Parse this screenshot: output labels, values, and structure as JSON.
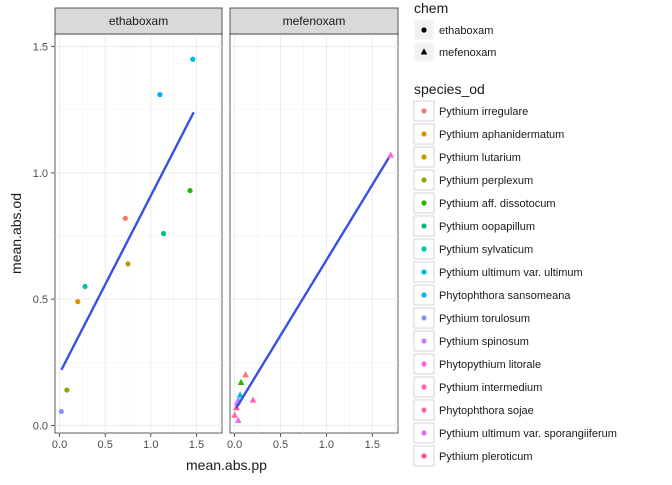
{
  "chart_data": {
    "type": "scatter",
    "xlabel": "mean.abs.pp",
    "ylabel": "mean.abs.od",
    "xlim": [
      -0.05,
      1.78
    ],
    "ylim": [
      -0.03,
      1.55
    ],
    "grid": true,
    "x_ticks": [
      0.0,
      0.5,
      1.0,
      1.5
    ],
    "x_tick_labels": [
      "0.0",
      "0.5",
      "1.0",
      "1.5"
    ],
    "y_ticks": [
      0.0,
      0.5,
      1.0,
      1.5
    ],
    "y_tick_labels": [
      "0.0",
      "0.5",
      "1.0",
      "1.5"
    ],
    "panels": [
      {
        "title": "ethaboxam",
        "shape": "circle",
        "fit": {
          "x": [
            0.02,
            1.47
          ],
          "y": [
            0.22,
            1.24
          ],
          "color": "#3A4FE8"
        },
        "points": [
          {
            "species": "Pythium irregulare",
            "x": 0.72,
            "y": 0.82
          },
          {
            "species": "Pythium aphanidermatum",
            "x": 0.2,
            "y": 0.49
          },
          {
            "species": "Pythium lutarium",
            "x": 0.75,
            "y": 0.64
          },
          {
            "species": "Pythium perplexum",
            "x": 0.08,
            "y": 0.14
          },
          {
            "species": "Pythium aff. dissotocum",
            "x": 1.43,
            "y": 0.93
          },
          {
            "species": "Pythium oopapillum",
            "x": 1.14,
            "y": 0.76
          },
          {
            "species": "Pythium sylvaticum",
            "x": 0.28,
            "y": 0.55
          },
          {
            "species": "Pythium ultimum var. ultimum",
            "x": 1.46,
            "y": 1.45
          },
          {
            "species": "Phytophthora sansomeana",
            "x": 1.1,
            "y": 1.31
          },
          {
            "species": "Pythium torulosum",
            "x": 0.02,
            "y": 0.055
          }
        ]
      },
      {
        "title": "mefenoxam",
        "shape": "triangle",
        "fit": {
          "x": [
            0.02,
            1.68
          ],
          "y": [
            0.07,
            1.06
          ],
          "color": "#3A4FE8"
        },
        "points": [
          {
            "species": "Pythium irregulare",
            "x": 0.12,
            "y": 0.2
          },
          {
            "species": "Pythium aff. dissotocum",
            "x": 0.07,
            "y": 0.17
          },
          {
            "species": "Pythium ultimum var. ultimum",
            "x": 0.06,
            "y": 0.12
          },
          {
            "species": "Pythium torulosum",
            "x": 0.04,
            "y": 0.1
          },
          {
            "species": "Pythium spinosum",
            "x": 0.03,
            "y": 0.09
          },
          {
            "species": "Phytopythium litorale",
            "x": 1.7,
            "y": 1.07
          },
          {
            "species": "Pythium intermedium",
            "x": 0.2,
            "y": 0.1
          },
          {
            "species": "Phytophthora sojae",
            "x": 0.0,
            "y": 0.04
          },
          {
            "species": "Pythium ultimum var. sporangiiferum",
            "x": 0.04,
            "y": 0.02
          },
          {
            "species": "Pythium pleroticum",
            "x": 0.02,
            "y": 0.07
          }
        ]
      }
    ],
    "legend_placement": "right",
    "legend_chem": {
      "title": "chem",
      "items": [
        {
          "label": "ethaboxam",
          "shape": "circle"
        },
        {
          "label": "mefenoxam",
          "shape": "triangle"
        }
      ]
    },
    "legend_species": {
      "title": "species_od",
      "items": [
        {
          "label": "Pythium irregulare",
          "color": "#F8766D"
        },
        {
          "label": "Pythium aphanidermatum",
          "color": "#E18A00"
        },
        {
          "label": "Pythium lutarium",
          "color": "#BE9C00"
        },
        {
          "label": "Pythium perplexum",
          "color": "#8CAB00"
        },
        {
          "label": "Pythium aff. dissotocum",
          "color": "#24B700"
        },
        {
          "label": "Pythium oopapillum",
          "color": "#00BE70"
        },
        {
          "label": "Pythium sylvaticum",
          "color": "#00C1AB"
        },
        {
          "label": "Pythium ultimum var. ultimum",
          "color": "#00BBDA"
        },
        {
          "label": "Phytophthora sansomeana",
          "color": "#00ACFC"
        },
        {
          "label": "Pythium torulosum",
          "color": "#8B93FF"
        },
        {
          "label": "Pythium spinosum",
          "color": "#D575FE"
        },
        {
          "label": "Phytopythium litorale",
          "color": "#F962DD"
        },
        {
          "label": "Pythium intermedium",
          "color": "#FF65AC"
        },
        {
          "label": "Phytophthora sojae",
          "color": "#FF6C91"
        },
        {
          "label": "Pythium ultimum var. sporangiiferum",
          "color": "#E76BF3"
        },
        {
          "label": "Pythium pleroticum",
          "color": "#FF4F8C"
        }
      ]
    }
  }
}
